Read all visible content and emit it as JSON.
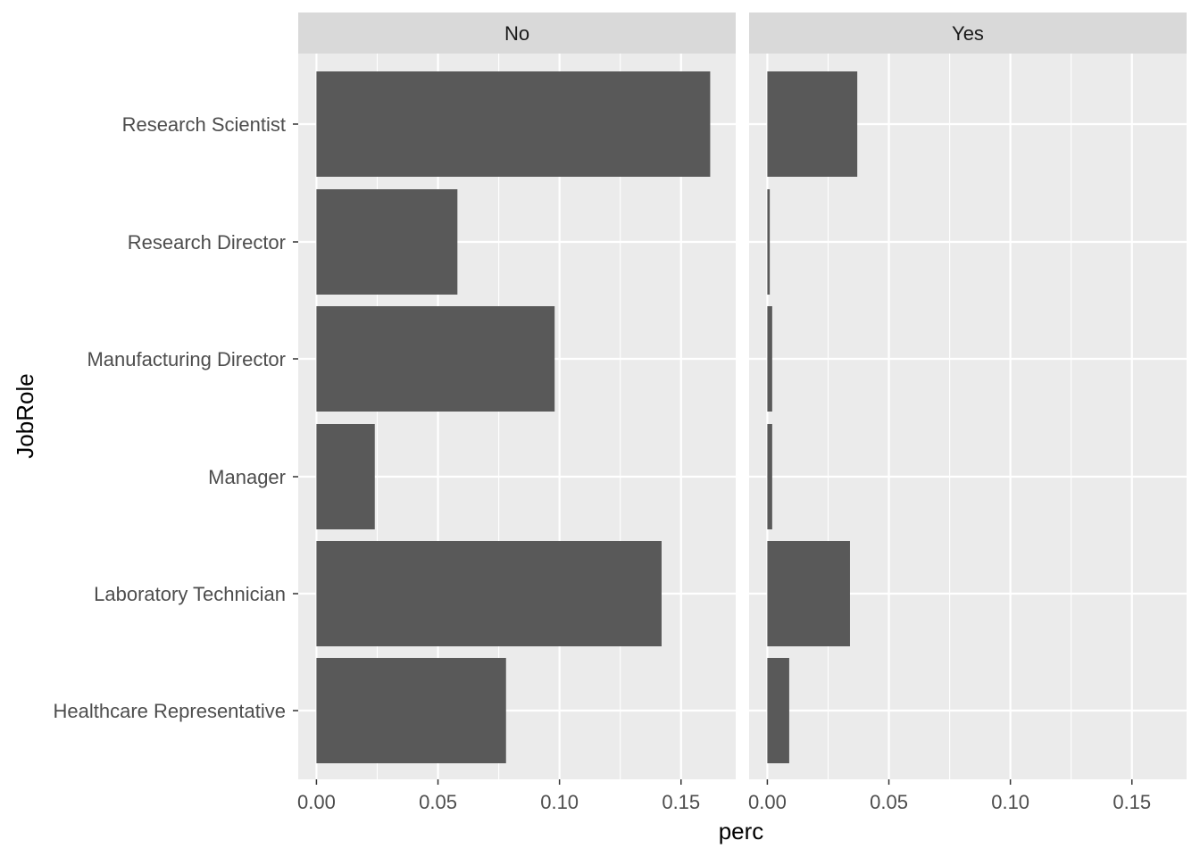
{
  "chart_data": {
    "type": "bar",
    "orientation": "horizontal",
    "facet_by": "Attrition",
    "xlabel": "perc",
    "ylabel": "JobRole",
    "xlim": [
      -0.0075,
      0.1725
    ],
    "x_ticks": [
      0.0,
      0.05,
      0.1,
      0.15
    ],
    "x_tick_labels": [
      "0.00",
      "0.05",
      "0.10",
      "0.15"
    ],
    "categories": [
      "Research Scientist",
      "Research Director",
      "Manufacturing Director",
      "Manager",
      "Laboratory Technician",
      "Healthcare Representative"
    ],
    "panels": [
      {
        "label": "No",
        "values": [
          0.162,
          0.058,
          0.098,
          0.024,
          0.142,
          0.078
        ]
      },
      {
        "label": "Yes",
        "values": [
          0.037,
          0.001,
          0.002,
          0.002,
          0.034,
          0.009
        ]
      }
    ],
    "grid": true,
    "legend": "none",
    "colors": {
      "bar": "#595959",
      "panel_bg": "#ebebeb",
      "strip_bg": "#d9d9d9",
      "grid": "#ffffff"
    }
  }
}
